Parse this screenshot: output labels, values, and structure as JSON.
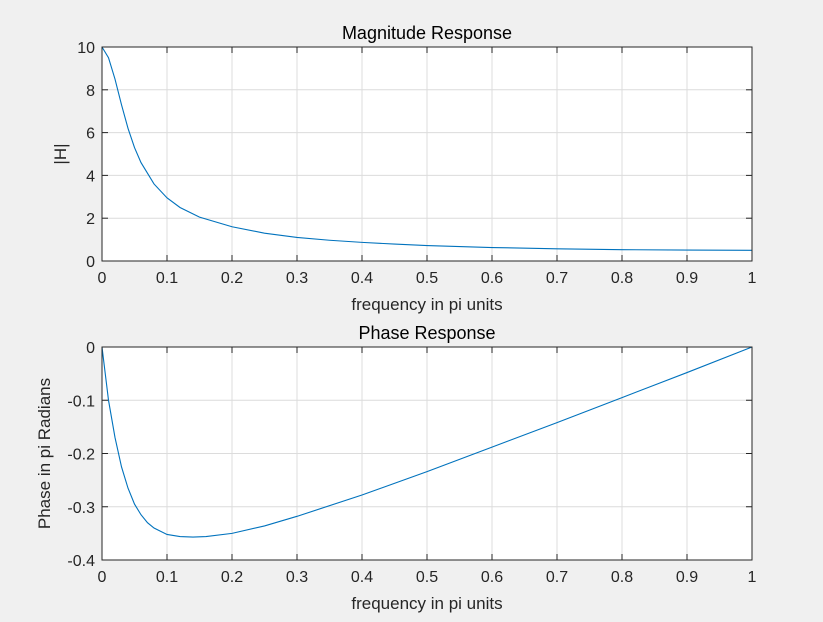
{
  "figure": {
    "background": "#f0f0f0",
    "line_color": "#0072bd",
    "grid_color": "#dcdcdc"
  },
  "chart_data": [
    {
      "type": "line",
      "title": "Magnitude Response",
      "xlabel": "frequency in pi units",
      "ylabel": "|H|",
      "xlim": [
        0,
        1
      ],
      "ylim": [
        0,
        10
      ],
      "xticks": [
        0,
        0.1,
        0.2,
        0.3,
        0.4,
        0.5,
        0.6,
        0.7,
        0.8,
        0.9,
        1
      ],
      "xtick_labels": [
        "0",
        "0.1",
        "0.2",
        "0.3",
        "0.4",
        "0.5",
        "0.6",
        "0.7",
        "0.8",
        "0.9",
        "1"
      ],
      "yticks": [
        0,
        2,
        4,
        6,
        8,
        10
      ],
      "ytick_labels": [
        "0",
        "2",
        "4",
        "6",
        "8",
        "10"
      ],
      "grid": true,
      "series": [
        {
          "x": [
            0,
            0.01,
            0.02,
            0.03,
            0.04,
            0.05,
            0.06,
            0.08,
            0.1,
            0.12,
            0.15,
            0.2,
            0.25,
            0.3,
            0.35,
            0.4,
            0.45,
            0.5,
            0.6,
            0.7,
            0.8,
            0.9,
            1
          ],
          "y": [
            10,
            9.5,
            8.5,
            7.3,
            6.2,
            5.3,
            4.6,
            3.6,
            2.95,
            2.5,
            2.05,
            1.6,
            1.3,
            1.1,
            0.97,
            0.87,
            0.79,
            0.72,
            0.63,
            0.57,
            0.53,
            0.51,
            0.5
          ]
        }
      ]
    },
    {
      "type": "line",
      "title": "Phase Response",
      "xlabel": "frequency in pi units",
      "ylabel": "Phase in pi Radians",
      "xlim": [
        0,
        1
      ],
      "ylim": [
        -0.4,
        0
      ],
      "xticks": [
        0,
        0.1,
        0.2,
        0.3,
        0.4,
        0.5,
        0.6,
        0.7,
        0.8,
        0.9,
        1
      ],
      "xtick_labels": [
        "0",
        "0.1",
        "0.2",
        "0.3",
        "0.4",
        "0.5",
        "0.6",
        "0.7",
        "0.8",
        "0.9",
        "1"
      ],
      "yticks": [
        -0.4,
        -0.3,
        -0.2,
        -0.1,
        0
      ],
      "ytick_labels": [
        "-0.4",
        "-0.3",
        "-0.2",
        "-0.1",
        "0"
      ],
      "grid": true,
      "series": [
        {
          "x": [
            0,
            0.005,
            0.01,
            0.02,
            0.03,
            0.04,
            0.05,
            0.06,
            0.07,
            0.08,
            0.1,
            0.12,
            0.14,
            0.16,
            0.2,
            0.25,
            0.3,
            0.4,
            0.5,
            0.6,
            0.7,
            0.8,
            0.9,
            1
          ],
          "y": [
            0,
            -0.05,
            -0.1,
            -0.17,
            -0.225,
            -0.265,
            -0.295,
            -0.315,
            -0.33,
            -0.34,
            -0.352,
            -0.356,
            -0.357,
            -0.356,
            -0.35,
            -0.336,
            -0.318,
            -0.278,
            -0.234,
            -0.188,
            -0.142,
            -0.095,
            -0.048,
            0
          ]
        }
      ]
    }
  ]
}
